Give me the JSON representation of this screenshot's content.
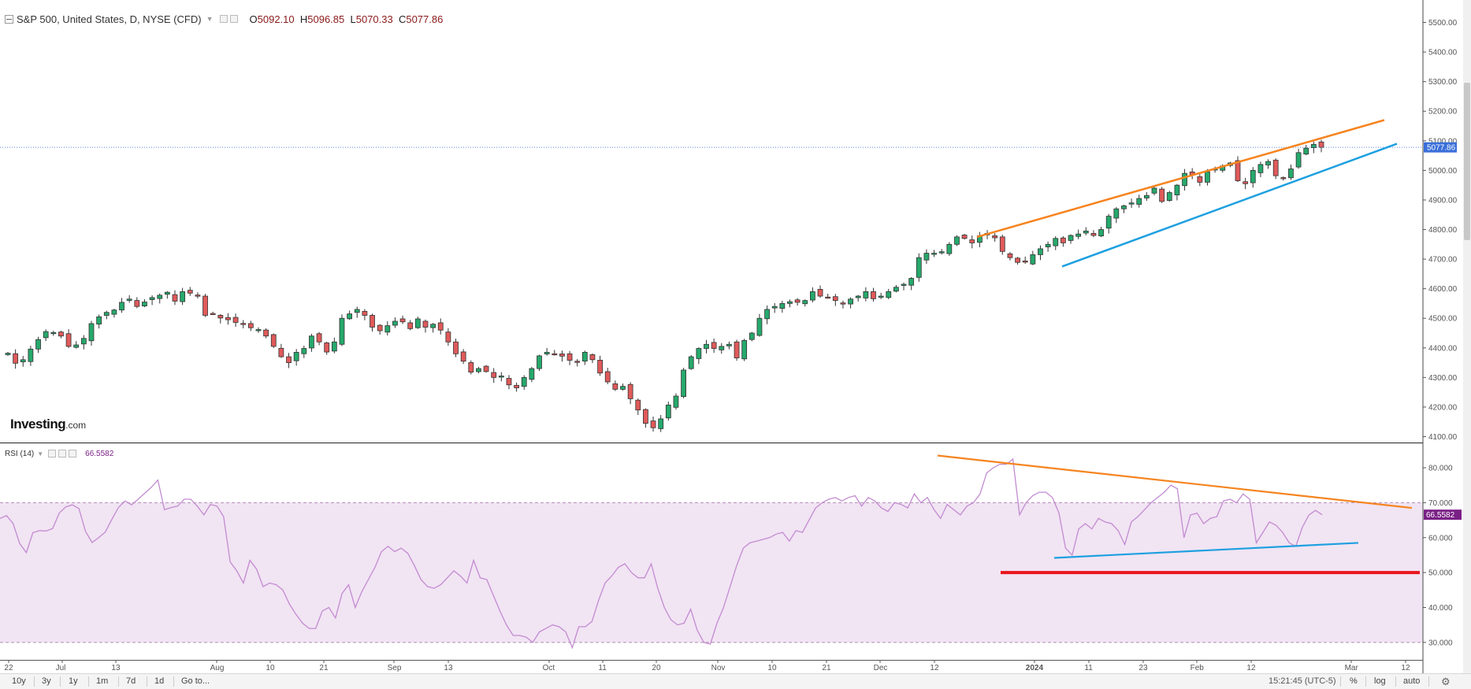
{
  "header": {
    "title": "S&P 500, United States, D, NYSE (CFD)",
    "open_label": "O",
    "open": "5092.10",
    "high_label": "H",
    "high": "5096.85",
    "low_label": "L",
    "low": "5070.33",
    "close_label": "C",
    "close": "5077.86"
  },
  "rsi": {
    "label": "RSI (14)",
    "value": "66.5582"
  },
  "brand": {
    "name": "Investing",
    "suffix": ".com"
  },
  "price_axis": {
    "ticks": [
      "5500.00",
      "5400.00",
      "5300.00",
      "5200.00",
      "5100.00",
      "5000.00",
      "4900.00",
      "4800.00",
      "4700.00",
      "4600.00",
      "4500.00",
      "4400.00",
      "4300.00",
      "4200.00",
      "4100.00"
    ],
    "last_price_label": "5077.86"
  },
  "rsi_axis": {
    "ticks": [
      "80.000",
      "70.000",
      "60.000",
      "50.000",
      "40.000",
      "30.000"
    ],
    "last_value_label": "66.5582"
  },
  "time_axis": {
    "labels": [
      "22",
      "Jul",
      "13",
      "Aug",
      "10",
      "21",
      "Sep",
      "13",
      "Oct",
      "11",
      "20",
      "Nov",
      "10",
      "21",
      "Dec",
      "12",
      "2024",
      "11",
      "23",
      "Feb",
      "12",
      "Mar",
      "12"
    ]
  },
  "bottom_bar": {
    "timeframes": [
      "10y",
      "3y",
      "1y",
      "1m",
      "7d",
      "1d",
      "Go to..."
    ],
    "clock": "15:21:45 (UTC-5)",
    "options": [
      "%",
      "log",
      "auto"
    ]
  },
  "colors": {
    "up_candle": "#26a96c",
    "down_candle": "#e05a5a",
    "rsi_line": "#c28bd0",
    "rsi_band_fill": "#f1e4f3",
    "trend_orange": "#f5841f",
    "trend_blue": "#1ea0e0",
    "support_red": "#e8141c",
    "last_price_badge": "#3a6fd9",
    "rsi_badge": "#7a1f86"
  },
  "chart_data": [
    {
      "type": "candlestick",
      "title": "S&P 500, United States, D, NYSE (CFD)",
      "ylim": [
        4080,
        5560
      ],
      "last_price": 5077.86,
      "series": [
        {
          "name": "S&P 500",
          "close": [
            4382,
            4348,
            4360,
            4396,
            4428,
            4455,
            4452,
            4440,
            4405,
            4410,
            4432,
            4482,
            4505,
            4520,
            4528,
            4554,
            4565,
            4540,
            4555,
            4570,
            4578,
            4588,
            4558,
            4590,
            4585,
            4575,
            4510,
            4515,
            4501,
            4495,
            4486,
            4479,
            4468,
            4462,
            4440,
            4405,
            4370,
            4350,
            4385,
            4398,
            4440,
            4420,
            4386,
            4420,
            4500,
            4515,
            4530,
            4510,
            4470,
            4458,
            4475,
            4490,
            4488,
            4465,
            4498,
            4470,
            4480,
            4460,
            4420,
            4380,
            4355,
            4318,
            4330,
            4320,
            4300,
            4305,
            4275,
            4265,
            4300,
            4330,
            4373,
            4385,
            4378,
            4372,
            4358,
            4352,
            4385,
            4360,
            4315,
            4285,
            4260,
            4270,
            4228,
            4190,
            4145,
            4130,
            4160,
            4207,
            4237,
            4325,
            4370,
            4398,
            4412,
            4398,
            4405,
            4412,
            4366,
            4425,
            4450,
            4500,
            4530,
            4540,
            4550,
            4556,
            4554,
            4560,
            4590,
            4575,
            4570,
            4560,
            4550,
            4565,
            4575,
            4590,
            4566,
            4575,
            4590,
            4605,
            4615,
            4635,
            4705,
            4720,
            4720,
            4725,
            4750,
            4775,
            4770,
            4755,
            4779,
            4782,
            4772,
            4726,
            4705,
            4689,
            4690,
            4715,
            4735,
            4750,
            4770,
            4755,
            4780,
            4785,
            4795,
            4780,
            4800,
            4845,
            4870,
            4880,
            4890,
            4905,
            4915,
            4940,
            4895,
            4925,
            4950,
            4990,
            4985,
            4960,
            4995,
            5005,
            5015,
            5025,
            4965,
            4955,
            5000,
            5020,
            5030,
            4982,
            4975,
            5005,
            5060,
            5075,
            5088,
            5077.86
          ]
        }
      ]
    },
    {
      "type": "line",
      "title": "RSI (14)",
      "ylim": [
        25,
        87
      ],
      "reference_lines": [
        70,
        30
      ],
      "last_value": 66.5582,
      "series": [
        {
          "name": "RSI (14)",
          "values": [
            65.5,
            66.3,
            64.0,
            58.3,
            55.7,
            61.4,
            62.0,
            61.9,
            62.6,
            67.0,
            68.8,
            69.4,
            68.3,
            61.8,
            58.6,
            60.0,
            61.6,
            65.2,
            68.6,
            70.5,
            69.4,
            71.0,
            72.7,
            74.4,
            76.5,
            68.0,
            68.6,
            69.0,
            71.0,
            71.0,
            69.0,
            66.5,
            69.5,
            69.0,
            66.0,
            53.0,
            50.5,
            47.0,
            53.5,
            51.0,
            46.0,
            47.0,
            46.5,
            45.0,
            41.0,
            38.0,
            35.5,
            34.0,
            34.0,
            39.0,
            40.0,
            37.0,
            44.0,
            46.5,
            40.0,
            44.5,
            48.0,
            51.5,
            56.0,
            57.5,
            56.0,
            57.0,
            55.5,
            52.0,
            48.0,
            46.0,
            45.5,
            46.5,
            48.5,
            50.5,
            49.0,
            47.0,
            53.5,
            48.5,
            48.0,
            43.5,
            39.0,
            35.0,
            32.0,
            32.0,
            31.5,
            30.0,
            33.0,
            34.0,
            35.0,
            34.5,
            33.0,
            28.5,
            34.5,
            34.5,
            36.0,
            42.0,
            47.0,
            49.0,
            51.5,
            52.5,
            50.0,
            48.5,
            48.5,
            52.5,
            45.5,
            40.0,
            36.5,
            35.0,
            35.5,
            39.5,
            33.5,
            30.0,
            29.5,
            35.5,
            40.0,
            46.0,
            52.0,
            57.0,
            58.5,
            59.0,
            59.5,
            60.0,
            61.0,
            61.5,
            59.0,
            62.0,
            61.5,
            65.0,
            68.5,
            70.0,
            71.0,
            71.5,
            70.5,
            71.5,
            72.0,
            69.0,
            71.5,
            70.5,
            68.5,
            67.5,
            70.0,
            69.5,
            68.5,
            72.5,
            70.0,
            71.5,
            68.0,
            65.5,
            69.5,
            68.0,
            66.5,
            69.0,
            70.0,
            72.5,
            78.5,
            80.0,
            81.0,
            81.0,
            82.5,
            66.5,
            70.0,
            72.0,
            73.0,
            73.0,
            71.5,
            67.0,
            57.0,
            55.0,
            62.5,
            64.0,
            62.5,
            65.5,
            64.5,
            64.0,
            62.0,
            58.0,
            64.5,
            66.0,
            68.0,
            70.0,
            71.5,
            73.0,
            75.0,
            74.0,
            60.0,
            66.5,
            67.0,
            64.0,
            65.5,
            66.0,
            70.5,
            71.0,
            70.0,
            72.5,
            71.0,
            58.5,
            61.5,
            64.5,
            63.5,
            61.5,
            58.5,
            57.5,
            63.0,
            66.5,
            67.8,
            66.5582
          ]
        }
      ]
    }
  ]
}
